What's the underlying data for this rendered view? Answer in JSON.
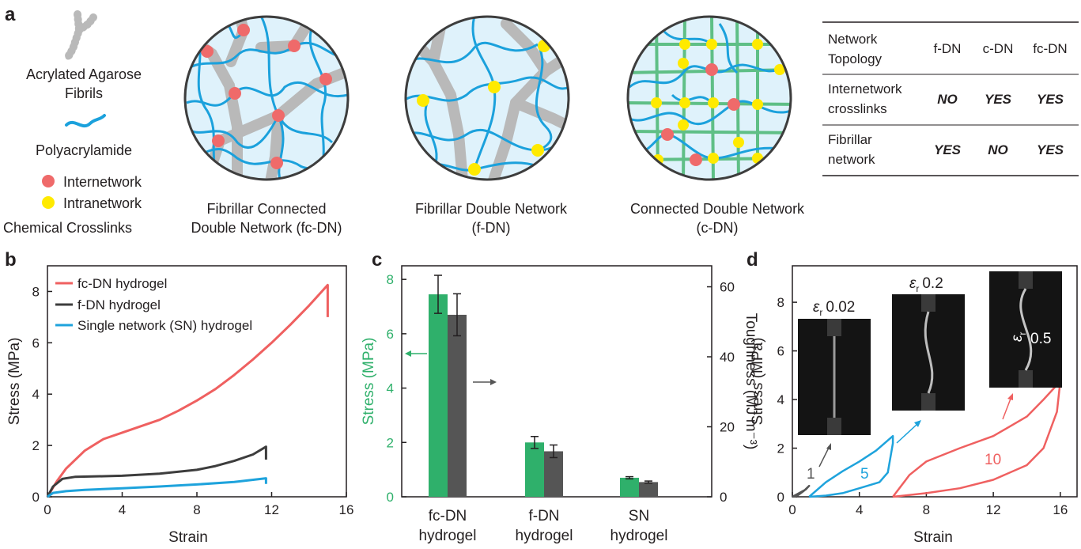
{
  "panels": {
    "a": "a",
    "b": "b",
    "c": "c",
    "d": "d"
  },
  "legend_a": {
    "fibrils": [
      "Acrylated Agarose",
      "Fibrils"
    ],
    "pam": "Polyacrylamide",
    "inter": "Internetwork",
    "intra": "Intranetwork",
    "crosslinks": "Chemical Crosslinks"
  },
  "circle_captions": [
    [
      "Fibrillar Connected",
      "Double Network (fc-DN)"
    ],
    [
      "Fibrillar Double Network",
      "(f-DN)"
    ],
    [
      "Connected Double Network",
      "(c-DN)"
    ]
  ],
  "colors": {
    "fibril": "#b9b9b9",
    "pam": "#1ba1dc",
    "inter": "#ef6a6a",
    "intra": "#ffea00",
    "mesh": "#5fbf86",
    "circle_bg": "#dff2fb",
    "fcdn": "#ef6060",
    "fdn": "#3d3d3d",
    "sn": "#1ea3dc",
    "green": "#2fb06b",
    "grey": "#555555"
  },
  "table": {
    "header": [
      "Network",
      "Topology",
      "f-DN",
      "c-DN",
      "fc-DN"
    ],
    "rows": [
      {
        "label": [
          "Internetwork",
          "crosslinks"
        ],
        "values": [
          "NO",
          "YES",
          "YES"
        ]
      },
      {
        "label": [
          "Fibrillar",
          "network"
        ],
        "values": [
          "YES",
          "NO",
          "YES"
        ]
      }
    ]
  },
  "chart_data": [
    {
      "type": "line",
      "xlabel": "Strain",
      "ylabel": "Stress (MPa)",
      "xlim": [
        0,
        16
      ],
      "ylim": [
        0,
        9
      ],
      "xticks": [
        "0",
        "4",
        "8",
        "12",
        "16"
      ],
      "yticks": [
        "0",
        "2",
        "4",
        "6",
        "8"
      ],
      "legend_position": "top-left",
      "series": [
        {
          "name": "fc-DN hydrogel",
          "points": [
            [
              0,
              0
            ],
            [
              0.5,
              0.6
            ],
            [
              1,
              1.1
            ],
            [
              2,
              1.8
            ],
            [
              3,
              2.25
            ],
            [
              4,
              2.5
            ],
            [
              5,
              2.75
            ],
            [
              6,
              3.0
            ],
            [
              7,
              3.35
            ],
            [
              8,
              3.75
            ],
            [
              9,
              4.2
            ],
            [
              10,
              4.75
            ],
            [
              11,
              5.35
            ],
            [
              12,
              6.0
            ],
            [
              13,
              6.7
            ],
            [
              14,
              7.45
            ],
            [
              15,
              8.25
            ],
            [
              15,
              7.0
            ]
          ]
        },
        {
          "name": "f-DN hydrogel",
          "points": [
            [
              0,
              0
            ],
            [
              0.3,
              0.4
            ],
            [
              0.8,
              0.7
            ],
            [
              1.5,
              0.78
            ],
            [
              3,
              0.8
            ],
            [
              4,
              0.82
            ],
            [
              6,
              0.9
            ],
            [
              8,
              1.05
            ],
            [
              9,
              1.2
            ],
            [
              10,
              1.4
            ],
            [
              11,
              1.65
            ],
            [
              11.7,
              1.95
            ],
            [
              11.7,
              1.45
            ]
          ]
        },
        {
          "name": "Single network (SN) hydrogel",
          "points": [
            [
              0,
              0
            ],
            [
              0.3,
              0.15
            ],
            [
              1,
              0.22
            ],
            [
              2,
              0.27
            ],
            [
              4,
              0.33
            ],
            [
              6,
              0.4
            ],
            [
              8,
              0.48
            ],
            [
              10,
              0.58
            ],
            [
              11.7,
              0.72
            ],
            [
              11.7,
              0.5
            ]
          ]
        }
      ]
    },
    {
      "type": "bar",
      "categories": [
        [
          "fc-DN",
          "hydrogel"
        ],
        [
          "f-DN",
          "hydrogel"
        ],
        [
          "SN",
          "hydrogel"
        ]
      ],
      "ylabel": "Stress (MPa)",
      "y2label": "Toughness (MJ m⁻³)",
      "ylim": [
        0,
        8.5
      ],
      "y2lim": [
        0,
        66
      ],
      "yticks": [
        "0",
        "2",
        "4",
        "6",
        "8"
      ],
      "y2ticks": [
        "0",
        "20",
        "40",
        "60"
      ],
      "series": [
        {
          "axis": "left",
          "values": [
            7.45,
            2.0,
            0.7
          ],
          "errors": [
            0.7,
            0.22,
            0.04
          ]
        },
        {
          "axis": "right",
          "values": [
            52,
            13,
            4.2
          ],
          "errors": [
            6,
            1.8,
            0.3
          ]
        }
      ]
    },
    {
      "type": "line",
      "xlabel": "Strain",
      "ylabel": "Stress (MPa)",
      "xlim": [
        0,
        17
      ],
      "ylim": [
        0,
        9.5
      ],
      "xticks": [
        "0",
        "4",
        "8",
        "12",
        "16"
      ],
      "yticks": [
        "0",
        "2",
        "4",
        "6",
        "8"
      ],
      "annotations": [
        "1",
        "5",
        "10"
      ],
      "inset_labels": [
        {
          "sym": "ε",
          "sub": "r",
          "val": "0.02"
        },
        {
          "sym": "ε",
          "sub": "r",
          "val": "0.2"
        },
        {
          "sym": "ε",
          "sub": "r",
          "val": "0.5"
        }
      ],
      "series": [
        {
          "name": "1",
          "points": [
            [
              0,
              0
            ],
            [
              0.4,
              0.15
            ],
            [
              0.8,
              0.3
            ],
            [
              1.0,
              0.45
            ],
            [
              0.7,
              0.25
            ],
            [
              0.3,
              0.05
            ],
            [
              0,
              0
            ]
          ]
        },
        {
          "name": "5",
          "points": [
            [
              1,
              0
            ],
            [
              2,
              0.6
            ],
            [
              3,
              1.05
            ],
            [
              4,
              1.45
            ],
            [
              5,
              1.9
            ],
            [
              6,
              2.5
            ],
            [
              6,
              2.2
            ],
            [
              5.7,
              1.0
            ],
            [
              5.2,
              0.6
            ],
            [
              4,
              0.35
            ],
            [
              3,
              0.15
            ],
            [
              2,
              0.05
            ],
            [
              1,
              0
            ]
          ]
        },
        {
          "name": "10",
          "points": [
            [
              6,
              0
            ],
            [
              7,
              0.9
            ],
            [
              8,
              1.45
            ],
            [
              10,
              2.0
            ],
            [
              12,
              2.5
            ],
            [
              14,
              3.3
            ],
            [
              15,
              4.0
            ],
            [
              16,
              4.75
            ],
            [
              15.8,
              3.5
            ],
            [
              15,
              2.0
            ],
            [
              14,
              1.3
            ],
            [
              12,
              0.7
            ],
            [
              10,
              0.35
            ],
            [
              8,
              0.15
            ],
            [
              6,
              0
            ]
          ]
        }
      ]
    }
  ]
}
